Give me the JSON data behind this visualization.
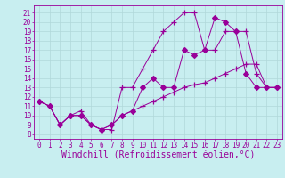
{
  "xlabel": "Windchill (Refroidissement éolien,°C)",
  "ylabel": "",
  "bg_color": "#c8eef0",
  "line_color": "#990099",
  "grid_color": "#b0d8da",
  "x_ticks": [
    0,
    1,
    2,
    3,
    4,
    5,
    6,
    7,
    8,
    9,
    10,
    11,
    12,
    13,
    14,
    15,
    16,
    17,
    18,
    19,
    20,
    21,
    22,
    23
  ],
  "y_ticks": [
    8,
    9,
    10,
    11,
    12,
    13,
    14,
    15,
    16,
    17,
    18,
    19,
    20,
    21
  ],
  "xlim": [
    -0.5,
    23.5
  ],
  "ylim": [
    7.5,
    21.8
  ],
  "series": [
    {
      "x": [
        0,
        1,
        2,
        3,
        4,
        5,
        6,
        7,
        8,
        9,
        10,
        11,
        12,
        13,
        14,
        15,
        16,
        17,
        18,
        19,
        20,
        21,
        22,
        23
      ],
      "y": [
        11.5,
        11.0,
        9.0,
        10.0,
        10.5,
        9.0,
        8.5,
        8.5,
        13.0,
        13.0,
        15.0,
        17.0,
        19.0,
        20.0,
        21.0,
        21.0,
        17.0,
        17.0,
        19.0,
        19.0,
        19.0,
        14.5,
        13.0,
        13.0
      ],
      "marker": "+"
    },
    {
      "x": [
        0,
        1,
        2,
        3,
        4,
        5,
        6,
        7,
        8,
        9,
        10,
        11,
        12,
        13,
        14,
        15,
        16,
        17,
        18,
        19,
        20,
        21,
        22,
        23
      ],
      "y": [
        11.5,
        11.0,
        9.0,
        10.0,
        10.0,
        9.0,
        8.5,
        9.0,
        10.0,
        10.5,
        11.0,
        11.5,
        12.0,
        12.5,
        13.0,
        13.3,
        13.5,
        14.0,
        14.5,
        15.0,
        15.5,
        15.5,
        13.0,
        13.0
      ],
      "marker": "+"
    },
    {
      "x": [
        0,
        1,
        2,
        3,
        4,
        5,
        6,
        7,
        8,
        9,
        10,
        11,
        12,
        13,
        14,
        15,
        16,
        17,
        18,
        19,
        20,
        21,
        22,
        23
      ],
      "y": [
        11.5,
        11.0,
        9.0,
        10.0,
        10.0,
        9.0,
        8.5,
        9.0,
        10.0,
        10.5,
        13.0,
        14.0,
        13.0,
        13.0,
        17.0,
        16.5,
        17.0,
        20.5,
        20.0,
        19.0,
        14.5,
        13.0,
        13.0,
        13.0
      ],
      "marker": "D"
    }
  ],
  "font_family": "monospace",
  "tick_fontsize": 5.5,
  "label_fontsize": 7.0
}
